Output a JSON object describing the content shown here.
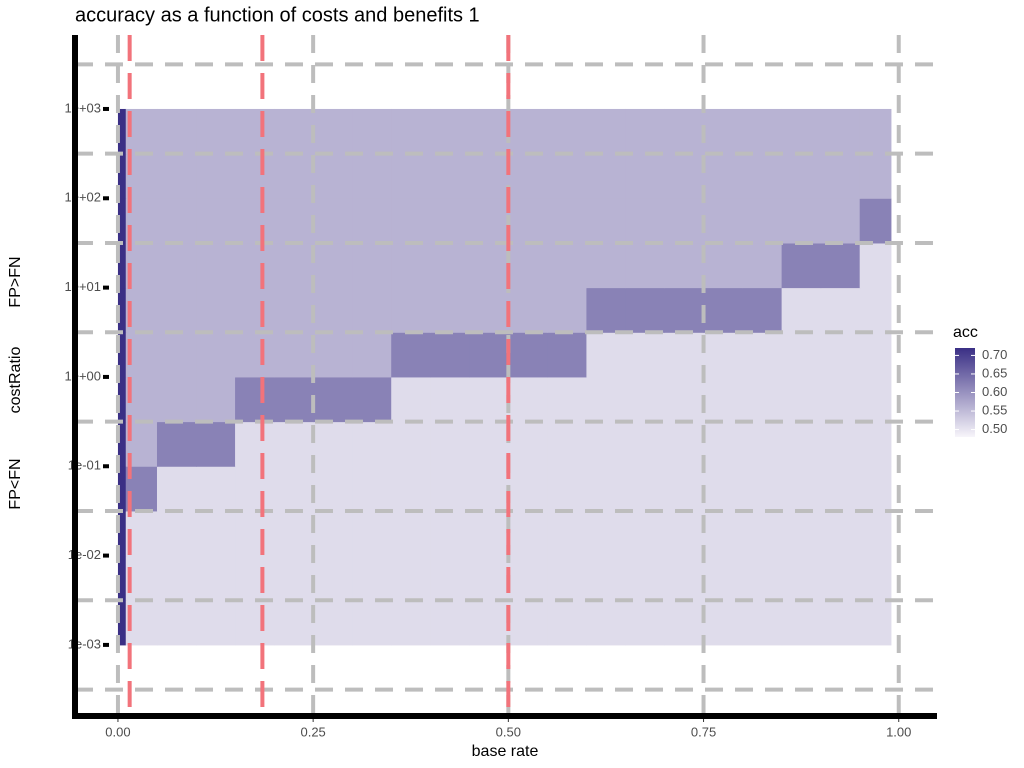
{
  "chart_data": {
    "type": "heatmap",
    "title": "accuracy as a function of costs and benefits 1",
    "x_label": "base rate",
    "y_label": "costRatio",
    "annotations": [
      "FP>FN",
      "FP<FN"
    ],
    "legend_title": "acc",
    "x_bins": [
      0,
      0.01,
      0.05,
      0.1,
      0.15,
      0.2,
      0.25,
      0.3,
      0.35,
      0.4,
      0.45,
      0.5,
      0.55,
      0.6,
      0.65,
      0.7,
      0.75,
      0.8,
      0.85,
      0.9,
      0.95,
      0.99
    ],
    "y_bins": [
      0.001,
      0.00316,
      0.01,
      0.0316,
      0.1,
      0.316,
      1,
      3.16,
      10,
      31.6,
      100,
      316,
      1000
    ],
    "values": [
      [
        0.72,
        0.51,
        0.51,
        0.51,
        0.51,
        0.51,
        0.51,
        0.51,
        0.51,
        0.51,
        0.51,
        0.51,
        0.51,
        0.51,
        0.51,
        0.51,
        0.51,
        0.51,
        0.51,
        0.51,
        0.51
      ],
      [
        0.72,
        0.51,
        0.51,
        0.51,
        0.51,
        0.51,
        0.51,
        0.51,
        0.51,
        0.51,
        0.51,
        0.51,
        0.51,
        0.51,
        0.51,
        0.51,
        0.51,
        0.51,
        0.51,
        0.51,
        0.51
      ],
      [
        0.72,
        0.51,
        0.51,
        0.51,
        0.51,
        0.51,
        0.51,
        0.51,
        0.51,
        0.51,
        0.51,
        0.51,
        0.51,
        0.51,
        0.51,
        0.51,
        0.51,
        0.51,
        0.51,
        0.51,
        0.51
      ],
      [
        0.72,
        0.62,
        0.51,
        0.51,
        0.51,
        0.51,
        0.51,
        0.51,
        0.51,
        0.51,
        0.51,
        0.51,
        0.51,
        0.51,
        0.51,
        0.51,
        0.51,
        0.51,
        0.51,
        0.51,
        0.51
      ],
      [
        0.72,
        0.56,
        0.62,
        0.62,
        0.51,
        0.51,
        0.51,
        0.51,
        0.51,
        0.51,
        0.51,
        0.51,
        0.51,
        0.51,
        0.51,
        0.51,
        0.51,
        0.51,
        0.51,
        0.51,
        0.51
      ],
      [
        0.72,
        0.56,
        0.56,
        0.56,
        0.62,
        0.62,
        0.62,
        0.62,
        0.51,
        0.51,
        0.51,
        0.51,
        0.51,
        0.51,
        0.51,
        0.51,
        0.51,
        0.51,
        0.51,
        0.51,
        0.51
      ],
      [
        0.72,
        0.56,
        0.56,
        0.56,
        0.56,
        0.56,
        0.56,
        0.56,
        0.62,
        0.62,
        0.62,
        0.62,
        0.62,
        0.51,
        0.51,
        0.51,
        0.51,
        0.51,
        0.51,
        0.51,
        0.51
      ],
      [
        0.72,
        0.56,
        0.56,
        0.56,
        0.56,
        0.56,
        0.56,
        0.56,
        0.56,
        0.56,
        0.56,
        0.56,
        0.56,
        0.62,
        0.62,
        0.62,
        0.62,
        0.62,
        0.51,
        0.51,
        0.51
      ],
      [
        0.72,
        0.56,
        0.56,
        0.56,
        0.56,
        0.56,
        0.56,
        0.56,
        0.56,
        0.56,
        0.56,
        0.56,
        0.56,
        0.56,
        0.56,
        0.56,
        0.56,
        0.56,
        0.62,
        0.62,
        0.51
      ],
      [
        0.72,
        0.56,
        0.56,
        0.56,
        0.56,
        0.56,
        0.56,
        0.56,
        0.56,
        0.56,
        0.56,
        0.56,
        0.56,
        0.56,
        0.56,
        0.56,
        0.56,
        0.56,
        0.56,
        0.56,
        0.62
      ],
      [
        0.72,
        0.56,
        0.56,
        0.56,
        0.56,
        0.56,
        0.56,
        0.56,
        0.56,
        0.56,
        0.56,
        0.56,
        0.56,
        0.56,
        0.56,
        0.56,
        0.56,
        0.56,
        0.56,
        0.56,
        0.56
      ],
      [
        0.72,
        0.56,
        0.56,
        0.56,
        0.56,
        0.56,
        0.56,
        0.56,
        0.56,
        0.56,
        0.56,
        0.56,
        0.56,
        0.56,
        0.56,
        0.56,
        0.56,
        0.56,
        0.56,
        0.56,
        0.56
      ]
    ],
    "color_low": "#f7f5fa",
    "color_high": "#3a2f85",
    "color_lim": [
      0.48,
      0.72
    ],
    "legend_ticks": [
      {
        "value": 0.7,
        "label": "0.70"
      },
      0.65,
      {
        "value": 0.6,
        "label": "0.60"
      },
      0.55,
      {
        "value": 0.5,
        "label": "0.50"
      }
    ],
    "xlim": [
      -0.055,
      1.049
    ],
    "xticks": [
      {
        "value": 0,
        "label": "0.00"
      },
      0.25,
      {
        "value": 0.5,
        "label": "0.50"
      },
      0.75,
      {
        "value": 1,
        "label": "1.00"
      }
    ],
    "ylim": [
      0.00016,
      6730
    ],
    "y_log": true,
    "yticks": [
      {
        "value": 0.001,
        "label": "1e-03"
      },
      {
        "value": 0.01,
        "label": "1e-02"
      },
      {
        "value": 0.1,
        "label": "1e-01"
      },
      {
        "value": 1,
        "label": "1e+00"
      },
      {
        "value": 10,
        "label": "1e+01"
      },
      {
        "value": 100,
        "label": "1e+02"
      },
      {
        "value": 1000,
        "label": "1e+03"
      }
    ],
    "y_grid": [
      0.000316,
      0.00316,
      0.0316,
      0.316,
      3.16,
      31.6,
      316,
      3160
    ],
    "grid_color": "#bdbdbd",
    "vlines": [
      0.015,
      0.185,
      0.5
    ],
    "vline_color": "#f2737b"
  }
}
